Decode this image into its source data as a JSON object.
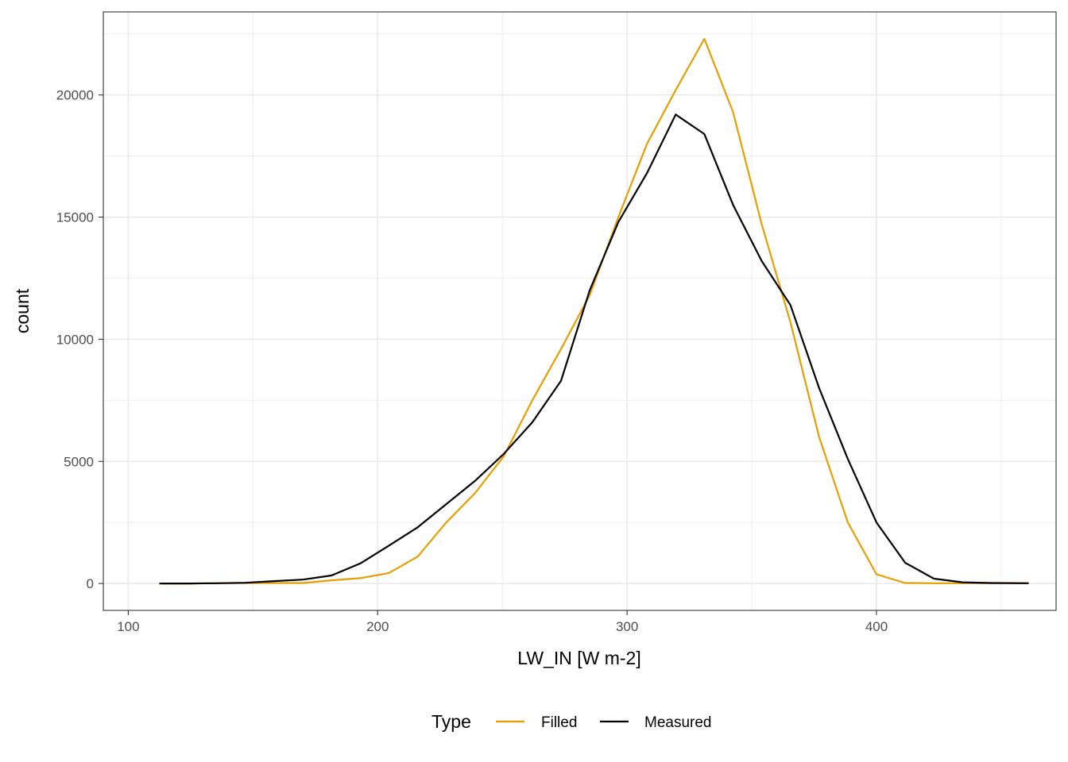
{
  "chart_data": {
    "type": "line",
    "xlabel": "LW_IN [W m-2]",
    "ylabel": "count",
    "xlim": [
      90,
      472
    ],
    "ylim": [
      -1100,
      23400
    ],
    "x_ticks": [
      100,
      200,
      300,
      400
    ],
    "y_ticks": [
      0,
      5000,
      10000,
      15000,
      20000
    ],
    "x_tick_labels": [
      "100",
      "200",
      "300",
      "400"
    ],
    "y_tick_labels": [
      "0",
      "5000",
      "10000",
      "15000",
      "20000"
    ],
    "grid": true,
    "legend": {
      "title": "Type",
      "placement": "bottom"
    },
    "series": [
      {
        "name": "Filled",
        "color": "#E69F00",
        "x": [
          112.5,
          124,
          135.5,
          147,
          158.5,
          170,
          181.5,
          193,
          204.5,
          216,
          227.5,
          239,
          250.5,
          262,
          273.5,
          285,
          296.5,
          308,
          319.5,
          331,
          342.5,
          354,
          365.5,
          377,
          388.5,
          400,
          411.5,
          423,
          434.5,
          446,
          461
        ],
        "values": [
          0,
          0,
          10,
          20,
          20,
          20,
          130,
          220,
          430,
          1100,
          2500,
          3700,
          5200,
          7500,
          9600,
          11800,
          15000,
          18000,
          20200,
          22300,
          19300,
          14700,
          10700,
          6000,
          2500,
          380,
          20,
          10,
          10,
          10,
          10
        ]
      },
      {
        "name": "Measured",
        "color": "#000000",
        "x": [
          112.5,
          124,
          135.5,
          147,
          158.5,
          170,
          181.5,
          193,
          204.5,
          216,
          227.5,
          239,
          250.5,
          262,
          273.5,
          285,
          296.5,
          308,
          319.5,
          331,
          342.5,
          354,
          365.5,
          377,
          388.5,
          400,
          411.5,
          423,
          434.5,
          446,
          461
        ],
        "values": [
          0,
          0,
          10,
          30,
          100,
          160,
          330,
          820,
          1550,
          2300,
          3250,
          4200,
          5300,
          6600,
          8300,
          12000,
          14800,
          16800,
          19200,
          18400,
          15500,
          13200,
          11400,
          8000,
          5100,
          2500,
          850,
          200,
          50,
          20,
          10
        ]
      }
    ]
  }
}
